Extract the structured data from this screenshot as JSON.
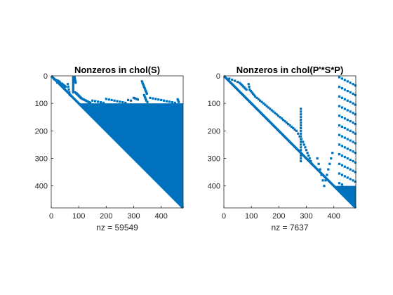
{
  "figure": {
    "background": "#ffffff",
    "mark_color": "#0072BD"
  },
  "chart_data": [
    {
      "type": "spy",
      "title": "Nonzeros in chol(S)",
      "xlabel": "nz = 59549",
      "matrix_size": 480,
      "xlim": [
        0,
        480
      ],
      "ylim": [
        0,
        480
      ],
      "y_reversed": true,
      "xticks": [
        0,
        100,
        200,
        300,
        400
      ],
      "yticks": [
        0,
        100,
        200,
        300,
        400
      ],
      "nz": 59549,
      "fill_regions": [
        {
          "rows": [
            100,
            480
          ],
          "cols_from_row_to": 480
        }
      ],
      "diagonal": true,
      "pattern_points": [
        [
          12,
          10
        ],
        [
          14,
          15
        ],
        [
          16,
          20
        ],
        [
          18,
          24
        ],
        [
          20,
          28
        ],
        [
          22,
          30
        ],
        [
          24,
          22
        ],
        [
          25,
          32
        ],
        [
          28,
          38
        ],
        [
          30,
          40
        ],
        [
          32,
          42
        ],
        [
          34,
          45
        ],
        [
          36,
          48
        ],
        [
          38,
          50
        ],
        [
          40,
          52
        ],
        [
          30,
          60
        ],
        [
          40,
          62
        ],
        [
          50,
          64
        ],
        [
          60,
          66
        ],
        [
          70,
          68
        ],
        [
          5,
          80
        ],
        [
          10,
          80
        ],
        [
          15,
          80
        ],
        [
          20,
          80
        ],
        [
          25,
          80
        ],
        [
          30,
          80
        ],
        [
          35,
          80
        ],
        [
          40,
          80
        ],
        [
          45,
          80
        ],
        [
          50,
          80
        ],
        [
          55,
          80
        ],
        [
          60,
          80
        ],
        [
          5,
          85
        ],
        [
          10,
          86
        ],
        [
          15,
          87
        ],
        [
          20,
          88
        ],
        [
          25,
          89
        ],
        [
          60,
          86
        ],
        [
          62,
          90
        ],
        [
          64,
          92
        ],
        [
          66,
          94
        ],
        [
          68,
          96
        ],
        [
          70,
          98
        ],
        [
          72,
          100
        ],
        [
          74,
          102
        ],
        [
          76,
          104
        ],
        [
          78,
          106
        ],
        [
          80,
          108
        ],
        [
          82,
          110
        ],
        [
          84,
          114
        ],
        [
          86,
          118
        ],
        [
          88,
          122
        ],
        [
          90,
          126
        ],
        [
          92,
          130
        ],
        [
          94,
          134
        ],
        [
          96,
          138
        ],
        [
          98,
          142
        ],
        [
          90,
          150
        ],
        [
          92,
          160
        ],
        [
          94,
          170
        ],
        [
          96,
          180
        ],
        [
          98,
          190
        ],
        [
          84,
          200
        ],
        [
          86,
          210
        ],
        [
          88,
          220
        ],
        [
          90,
          230
        ],
        [
          92,
          240
        ],
        [
          94,
          250
        ],
        [
          96,
          260
        ],
        [
          98,
          270
        ],
        [
          88,
          280
        ],
        [
          90,
          290
        ],
        [
          80,
          300
        ],
        [
          82,
          305
        ],
        [
          84,
          310
        ],
        [
          86,
          315
        ],
        [
          20,
          330
        ],
        [
          25,
          332
        ],
        [
          30,
          334
        ],
        [
          35,
          336
        ],
        [
          40,
          338
        ],
        [
          45,
          340
        ],
        [
          50,
          342
        ],
        [
          55,
          344
        ],
        [
          60,
          346
        ],
        [
          65,
          348
        ],
        [
          70,
          338
        ],
        [
          75,
          340
        ],
        [
          80,
          342
        ],
        [
          85,
          344
        ],
        [
          90,
          346
        ],
        [
          95,
          350
        ],
        [
          80,
          360
        ],
        [
          82,
          370
        ],
        [
          84,
          380
        ],
        [
          86,
          390
        ],
        [
          88,
          400
        ],
        [
          90,
          410
        ],
        [
          92,
          420
        ],
        [
          94,
          430
        ],
        [
          96,
          440
        ],
        [
          98,
          450
        ],
        [
          85,
          460
        ],
        [
          90,
          462
        ],
        [
          95,
          464
        ]
      ]
    },
    {
      "type": "spy",
      "title": "Nonzeros in chol(P'*S*P)",
      "xlabel": "nz = 7637",
      "matrix_size": 480,
      "xlim": [
        0,
        480
      ],
      "ylim": [
        0,
        480
      ],
      "y_reversed": true,
      "xticks": [
        0,
        100,
        200,
        300,
        400
      ],
      "yticks": [
        0,
        100,
        200,
        300,
        400
      ],
      "nz": 7637,
      "diagonal": true,
      "fill_regions": [
        {
          "rows": [
            400,
            480
          ],
          "cols_from_row_to": 480
        }
      ],
      "pattern_points": [
        [
          10,
          20
        ],
        [
          14,
          30
        ],
        [
          18,
          40
        ],
        [
          22,
          50
        ],
        [
          26,
          58
        ],
        [
          30,
          62
        ],
        [
          34,
          66
        ],
        [
          38,
          70
        ],
        [
          42,
          74
        ],
        [
          46,
          78
        ],
        [
          50,
          82
        ],
        [
          30,
          90
        ],
        [
          40,
          92
        ],
        [
          50,
          94
        ],
        [
          55,
          98
        ],
        [
          60,
          102
        ],
        [
          65,
          106
        ],
        [
          70,
          110
        ],
        [
          75,
          114
        ],
        [
          80,
          120
        ],
        [
          85,
          126
        ],
        [
          90,
          132
        ],
        [
          95,
          138
        ],
        [
          100,
          144
        ],
        [
          105,
          150
        ],
        [
          110,
          156
        ],
        [
          115,
          162
        ],
        [
          120,
          168
        ],
        [
          125,
          174
        ],
        [
          130,
          180
        ],
        [
          135,
          186
        ],
        [
          140,
          192
        ],
        [
          145,
          198
        ],
        [
          150,
          204
        ],
        [
          155,
          210
        ],
        [
          160,
          216
        ],
        [
          165,
          222
        ],
        [
          170,
          228
        ],
        [
          175,
          234
        ],
        [
          180,
          240
        ],
        [
          185,
          246
        ],
        [
          190,
          252
        ],
        [
          195,
          258
        ],
        [
          200,
          264
        ],
        [
          210,
          270
        ],
        [
          220,
          276
        ],
        [
          230,
          282
        ],
        [
          240,
          288
        ],
        [
          250,
          292
        ],
        [
          260,
          296
        ],
        [
          270,
          300
        ],
        [
          280,
          304
        ],
        [
          290,
          308
        ],
        [
          300,
          312
        ],
        [
          310,
          316
        ],
        [
          320,
          320
        ],
        [
          120,
          280
        ],
        [
          130,
          280
        ],
        [
          140,
          280
        ],
        [
          150,
          280
        ],
        [
          160,
          280
        ],
        [
          170,
          280
        ],
        [
          180,
          280
        ],
        [
          190,
          280
        ],
        [
          200,
          280
        ],
        [
          210,
          280
        ],
        [
          220,
          280
        ],
        [
          230,
          280
        ],
        [
          240,
          280
        ],
        [
          250,
          280
        ],
        [
          260,
          280
        ],
        [
          270,
          280
        ],
        [
          280,
          280
        ],
        [
          290,
          280
        ],
        [
          300,
          280
        ],
        [
          310,
          280
        ],
        [
          300,
          340
        ],
        [
          320,
          345
        ],
        [
          340,
          350
        ],
        [
          360,
          355
        ],
        [
          380,
          360
        ],
        [
          400,
          365
        ],
        [
          380,
          370
        ],
        [
          360,
          375
        ],
        [
          340,
          380
        ],
        [
          320,
          385
        ],
        [
          300,
          390
        ],
        [
          280,
          395
        ],
        [
          5,
          420
        ],
        [
          10,
          430
        ],
        [
          15,
          440
        ],
        [
          20,
          450
        ],
        [
          25,
          460
        ],
        [
          30,
          470
        ],
        [
          35,
          478
        ],
        [
          40,
          420
        ],
        [
          45,
          430
        ],
        [
          50,
          440
        ],
        [
          55,
          450
        ],
        [
          60,
          460
        ],
        [
          65,
          470
        ],
        [
          70,
          478
        ],
        [
          75,
          420
        ],
        [
          80,
          430
        ],
        [
          85,
          440
        ],
        [
          90,
          450
        ],
        [
          95,
          460
        ],
        [
          100,
          470
        ],
        [
          105,
          478
        ],
        [
          110,
          420
        ],
        [
          115,
          430
        ],
        [
          120,
          440
        ],
        [
          125,
          450
        ],
        [
          130,
          460
        ],
        [
          135,
          470
        ],
        [
          140,
          478
        ],
        [
          145,
          420
        ],
        [
          150,
          430
        ],
        [
          155,
          440
        ],
        [
          160,
          450
        ],
        [
          165,
          460
        ],
        [
          170,
          470
        ],
        [
          175,
          478
        ],
        [
          180,
          420
        ],
        [
          185,
          430
        ],
        [
          190,
          440
        ],
        [
          195,
          450
        ],
        [
          200,
          460
        ],
        [
          205,
          470
        ],
        [
          210,
          478
        ],
        [
          215,
          420
        ],
        [
          220,
          430
        ],
        [
          225,
          440
        ],
        [
          230,
          450
        ],
        [
          235,
          460
        ],
        [
          240,
          470
        ],
        [
          245,
          478
        ],
        [
          250,
          420
        ],
        [
          255,
          430
        ],
        [
          260,
          440
        ],
        [
          265,
          450
        ],
        [
          270,
          460
        ],
        [
          275,
          470
        ],
        [
          280,
          478
        ],
        [
          285,
          420
        ],
        [
          290,
          430
        ],
        [
          295,
          440
        ],
        [
          300,
          450
        ],
        [
          305,
          460
        ],
        [
          310,
          470
        ],
        [
          315,
          478
        ],
        [
          320,
          420
        ],
        [
          325,
          430
        ],
        [
          330,
          440
        ],
        [
          335,
          450
        ],
        [
          340,
          460
        ],
        [
          345,
          470
        ],
        [
          350,
          478
        ],
        [
          355,
          420
        ],
        [
          360,
          430
        ],
        [
          365,
          440
        ],
        [
          370,
          450
        ],
        [
          375,
          460
        ],
        [
          380,
          470
        ],
        [
          385,
          478
        ],
        [
          390,
          420
        ],
        [
          395,
          430
        ]
      ]
    }
  ]
}
